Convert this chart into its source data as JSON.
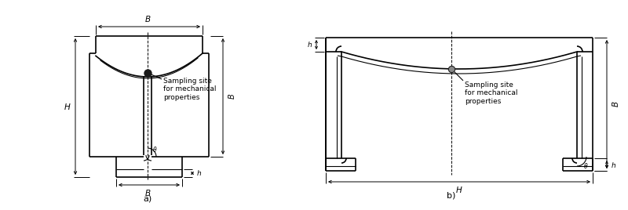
{
  "fig_width": 8.0,
  "fig_height": 2.68,
  "dpi": 100,
  "bg_color": "#ffffff",
  "line_color": "#000000",
  "label_a": "a)",
  "label_b": "b)",
  "sampling_text": "Sampling site\nfor mechanical\nproperties"
}
